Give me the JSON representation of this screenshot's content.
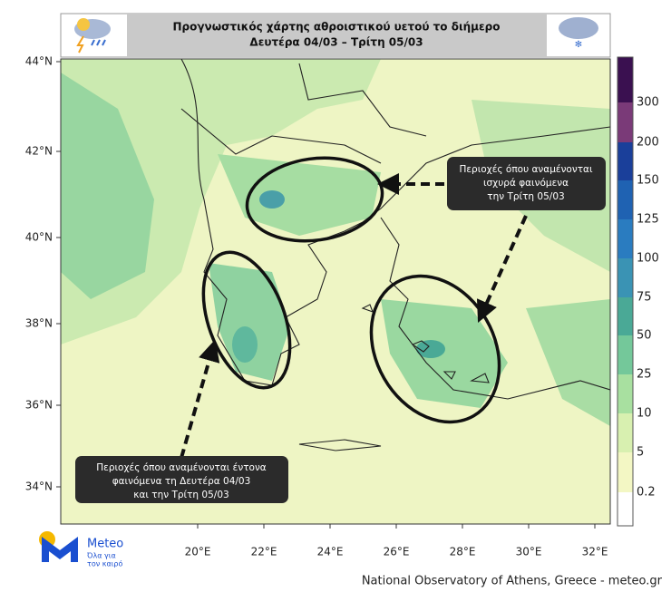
{
  "header": {
    "title_lines": [
      "Προγνωστικός χάρτης αθροιστικού υετού το διήμερο",
      "Δευτέρα 04/03 – Τρίτη 05/03"
    ]
  },
  "map": {
    "lat_labels": [
      "44°N",
      "42°N",
      "40°N",
      "38°N",
      "36°N",
      "34°N"
    ],
    "lon_labels": [
      "20°E",
      "22°E",
      "24°E",
      "26°E",
      "28°E",
      "30°E",
      "32°E"
    ]
  },
  "colorbar": {
    "labels": [
      "0.2",
      "5",
      "10",
      "25",
      "50",
      "75",
      "100",
      "125",
      "150",
      "200",
      "300"
    ],
    "colors": [
      "#ffffff",
      "#f3f7c4",
      "#d8f0b0",
      "#a8e0a0",
      "#74c89a",
      "#4aa996",
      "#3a93b4",
      "#2a7cc0",
      "#1f62b2",
      "#1a3f9a",
      "#7a3a78",
      "#3a1050"
    ]
  },
  "annotations": [
    {
      "lines": [
        "Περιοχές όπου αναμένονται",
        "ισχυρά φαινόμενα",
        "την Τρίτη 05/03"
      ]
    },
    {
      "lines": [
        "Περιοχές όπου αναμένονται έντονα",
        "φαινόμενα τη Δευτέρα 04/03",
        "και την Τρίτη 05/03"
      ]
    }
  ],
  "logo": {
    "name": "Meteo",
    "tagline": [
      "Όλα για",
      "τον καιρό"
    ]
  },
  "footer": "National Observatory of Athens, Greece - meteo.gr"
}
